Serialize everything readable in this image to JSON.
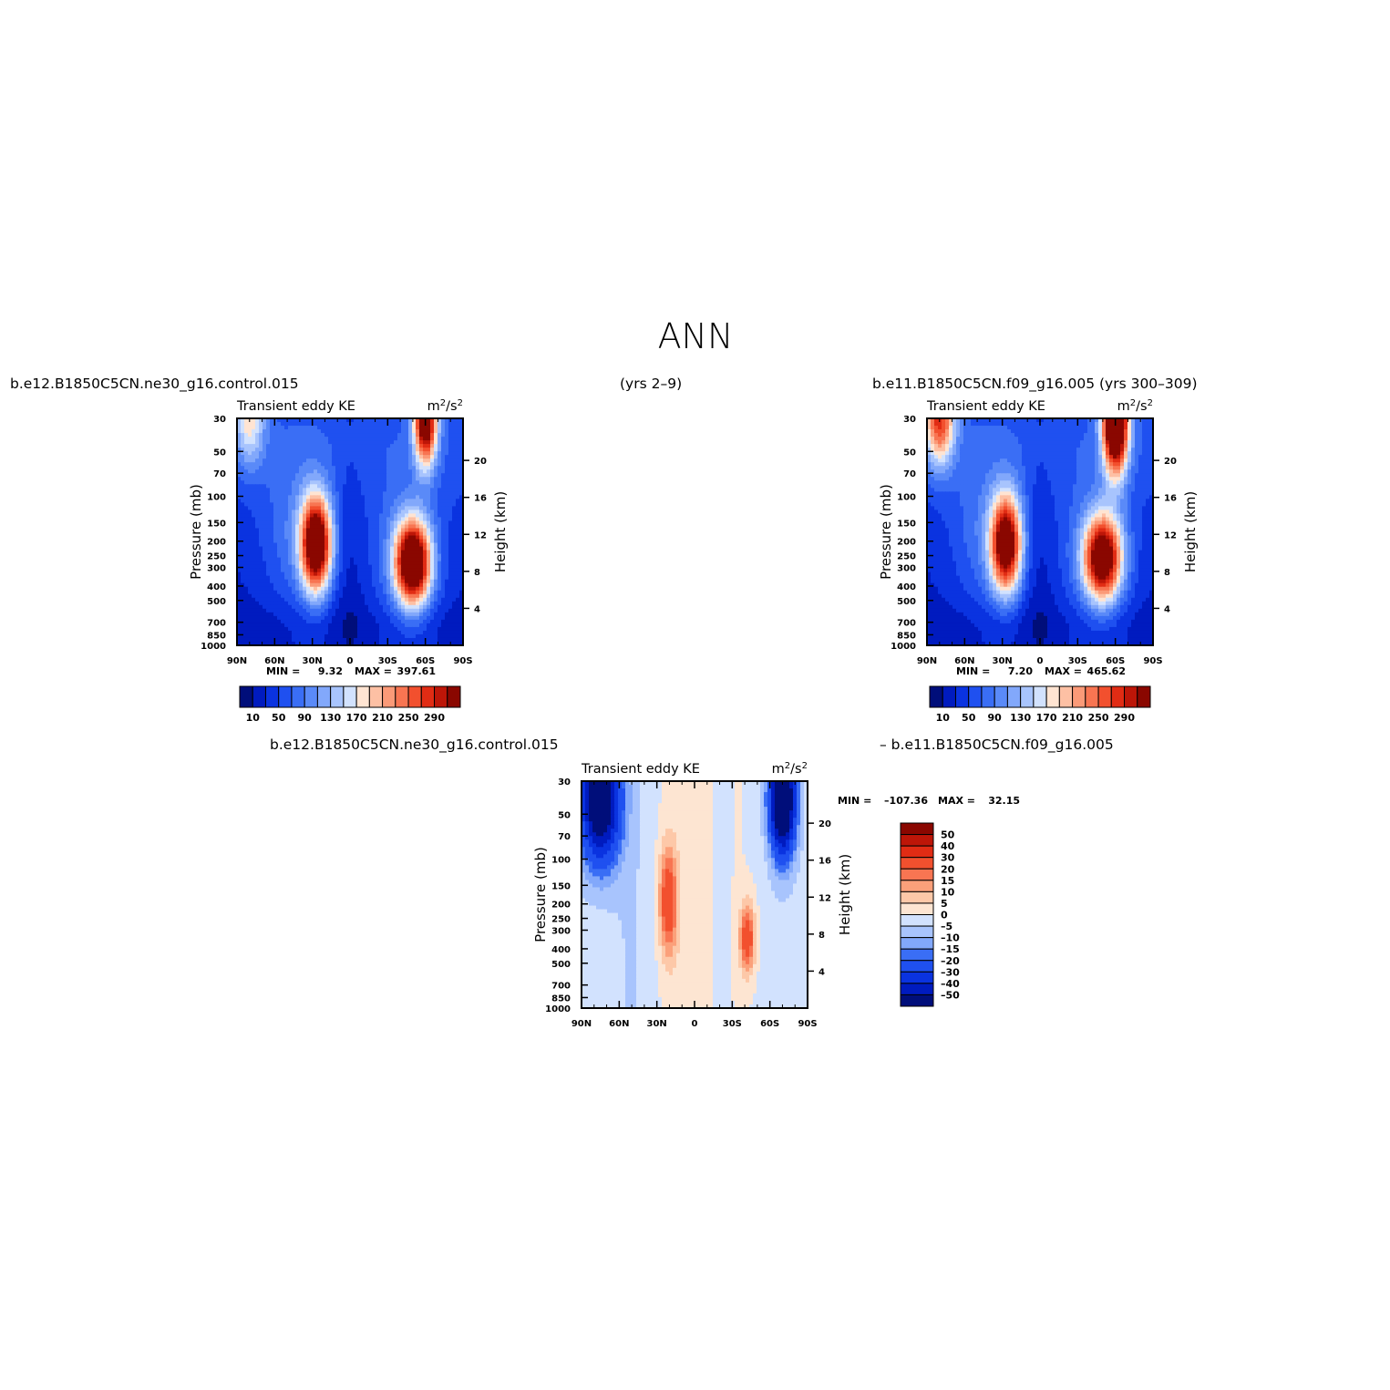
{
  "figure": {
    "season": "ANN",
    "header_left": "b.e12.B1850C5CN.ne30_g16.control.015",
    "header_mid": "(yrs 2–9)",
    "header_right": "b.e11.B1850C5CN.f09_g16.005 (yrs 300–309)",
    "diff_header_left": "b.e12.B1850C5CN.ne30_g16.control.015",
    "diff_header_right": "– b.e11.B1850C5CN.f09_g16.005"
  },
  "colors": {
    "abs_palette": [
      "#000e7a",
      "#001bbf",
      "#0a33e0",
      "#1f50f0",
      "#3a6ef5",
      "#5a8af8",
      "#82a8fb",
      "#a8c4fd",
      "#d2e2fe",
      "#ffe4d2",
      "#fdc0a4",
      "#fb9a78",
      "#f87552",
      "#f2502e",
      "#e12c14",
      "#bd1608",
      "#8a0700"
    ],
    "diff_palette": [
      "#000e7a",
      "#001bbf",
      "#0a33e0",
      "#1f50f0",
      "#3a6ef5",
      "#82a8fb",
      "#a8c4fd",
      "#d2e2fe",
      "#fde5d2",
      "#fdc8a8",
      "#fba07a",
      "#f87552",
      "#f2502e",
      "#e12c14",
      "#bd1608",
      "#8a0700"
    ]
  },
  "chart_data": [
    {
      "type": "heatmap",
      "panel": "case",
      "title_left": "Transient eddy KE",
      "units_base": "m",
      "units_exp1": "2",
      "units_mid": "/s",
      "units_exp2": "2",
      "ylabel": "Pressure (mb)",
      "y2label": "Height (km)",
      "x_ticks": [
        "90N",
        "60N",
        "30N",
        "0",
        "30S",
        "60S",
        "90S"
      ],
      "y_ticks": [
        "30",
        "50",
        "70",
        "100",
        "150",
        "200",
        "250",
        "300",
        "400",
        "500",
        "700",
        "850",
        "1000"
      ],
      "y2_ticks": [
        "20",
        "16",
        "12",
        "8",
        "4"
      ],
      "min_label": "MIN =",
      "min_value": "9.32",
      "max_label": "MAX =",
      "max_value": "397.61",
      "colorbar_labels": [
        "10",
        "50",
        "90",
        "130",
        "170",
        "210",
        "250",
        "290"
      ],
      "levels": [
        10,
        30,
        50,
        70,
        90,
        110,
        130,
        150,
        170,
        190,
        210,
        230,
        250,
        270,
        290,
        310
      ],
      "features": [
        {
          "lat": 27,
          "p": 210,
          "value": 330,
          "lat_width": 12,
          "logp_width": 0.32
        },
        {
          "lat": -50,
          "p": 280,
          "value": 340,
          "lat_width": 14,
          "logp_width": 0.28
        },
        {
          "lat": -60,
          "p": 30,
          "value": 320,
          "lat_width": 9,
          "logp_width": 0.3
        },
        {
          "lat": 80,
          "p": 30,
          "value": 120,
          "lat_width": 12,
          "logp_width": 0.3
        }
      ]
    },
    {
      "type": "heatmap",
      "panel": "control",
      "title_left": "Transient eddy KE",
      "units_base": "m",
      "units_exp1": "2",
      "units_mid": "/s",
      "units_exp2": "2",
      "ylabel": "Pressure (mb)",
      "y2label": "Height (km)",
      "x_ticks": [
        "90N",
        "60N",
        "30N",
        "0",
        "30S",
        "60S",
        "90S"
      ],
      "y_ticks": [
        "30",
        "50",
        "70",
        "100",
        "150",
        "200",
        "250",
        "300",
        "400",
        "500",
        "700",
        "850",
        "1000"
      ],
      "y2_ticks": [
        "20",
        "16",
        "12",
        "8",
        "4"
      ],
      "min_label": "MIN =",
      "min_value": "7.20",
      "max_label": "MAX =",
      "max_value": "465.62",
      "colorbar_labels": [
        "10",
        "50",
        "90",
        "130",
        "170",
        "210",
        "250",
        "290"
      ],
      "levels": [
        10,
        30,
        50,
        70,
        90,
        110,
        130,
        150,
        170,
        190,
        210,
        230,
        250,
        270,
        290,
        310
      ],
      "features": [
        {
          "lat": 27,
          "p": 210,
          "value": 310,
          "lat_width": 12,
          "logp_width": 0.32
        },
        {
          "lat": -50,
          "p": 260,
          "value": 300,
          "lat_width": 15,
          "logp_width": 0.28
        },
        {
          "lat": -60,
          "p": 30,
          "value": 420,
          "lat_width": 10,
          "logp_width": 0.35
        },
        {
          "lat": 80,
          "p": 30,
          "value": 220,
          "lat_width": 12,
          "logp_width": 0.3
        }
      ]
    },
    {
      "type": "heatmap",
      "panel": "difference",
      "title_left": "Transient eddy KE",
      "units_base": "m",
      "units_exp1": "2",
      "units_mid": "/s",
      "units_exp2": "2",
      "ylabel": "Pressure (mb)",
      "y2label": "Height (km)",
      "x_ticks": [
        "90N",
        "60N",
        "30N",
        "0",
        "30S",
        "60S",
        "90S"
      ],
      "y_ticks": [
        "30",
        "50",
        "70",
        "100",
        "150",
        "200",
        "250",
        "300",
        "400",
        "500",
        "700",
        "850",
        "1000"
      ],
      "y2_ticks": [
        "20",
        "16",
        "12",
        "8",
        "4"
      ],
      "min_label": "MIN =",
      "min_value": "–107.36",
      "max_label": "MAX =",
      "max_value": "32.15",
      "colorbar_labels": [
        "50",
        "40",
        "30",
        "20",
        "15",
        "10",
        "5",
        "0",
        "–5",
        "–10",
        "–15",
        "–20",
        "–30",
        "–40",
        "–50"
      ],
      "levels": [
        -50,
        -40,
        -30,
        -20,
        -15,
        -10,
        -5,
        0,
        5,
        10,
        15,
        20,
        30,
        40,
        50
      ],
      "features": [
        {
          "lat": 75,
          "p": 40,
          "value": -70,
          "lat_width": 15,
          "logp_width": 0.4
        },
        {
          "lat": -70,
          "p": 40,
          "value": -80,
          "lat_width": 10,
          "logp_width": 0.35
        },
        {
          "lat": 21,
          "p": 190,
          "value": 28,
          "lat_width": 7,
          "logp_width": 0.35
        },
        {
          "lat": -42,
          "p": 340,
          "value": 28,
          "lat_width": 6,
          "logp_width": 0.22
        }
      ]
    }
  ]
}
